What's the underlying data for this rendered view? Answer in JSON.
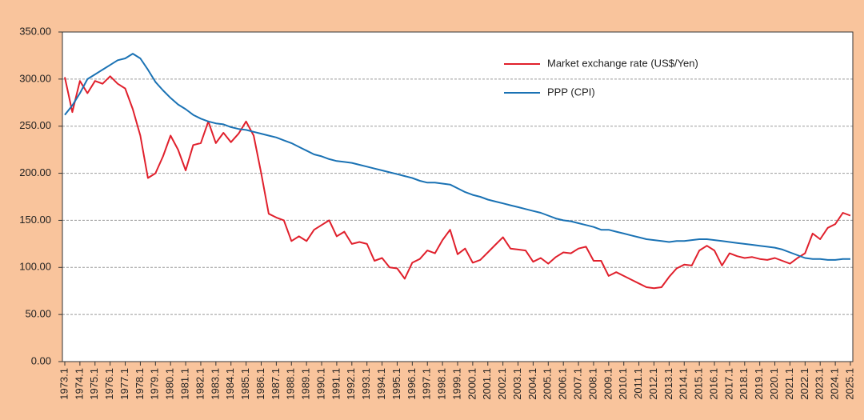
{
  "chart_data": {
    "type": "line",
    "categories": [
      "1973.1",
      null,
      "1974.1",
      null,
      "1975.1",
      null,
      "1976.1",
      null,
      "1977.1",
      null,
      "1978.1",
      null,
      "1979.1",
      null,
      "1980.1",
      null,
      "1981.1",
      null,
      "1982.1",
      null,
      "1983.1",
      null,
      "1984.1",
      null,
      "1985.1",
      null,
      "1986.1",
      null,
      "1987.1",
      null,
      "1988.1",
      null,
      "1989.1",
      null,
      "1990.1",
      null,
      "1991.1",
      null,
      "1992.1",
      null,
      "1993.1",
      null,
      "1994.1",
      null,
      "1995.1",
      null,
      "1996.1",
      null,
      "1997.1",
      null,
      "1998.1",
      null,
      "1999.1",
      null,
      "2000.1",
      null,
      "2001.1",
      null,
      "2002.1",
      null,
      "2003.1",
      null,
      "2004.1",
      null,
      "2005.1",
      null,
      "2006.1",
      null,
      "2007.1",
      null,
      "2008.1",
      null,
      "2009.1",
      null,
      "2010.1",
      null,
      "2011.1",
      null,
      "2012.1",
      null,
      "2013.1",
      null,
      "2014.1",
      null,
      "2015.1",
      null,
      "2016.1",
      null,
      "2017.1",
      null,
      "2018.1",
      null,
      "2019.1",
      null,
      "2020.1",
      null,
      "2021.1",
      null,
      "2022.1",
      null,
      "2023.1",
      null,
      "2024.1",
      null,
      "2025.1"
    ],
    "series": [
      {
        "name": "Market exchange rate (US$/Yen)",
        "color": "#e0202c",
        "values": [
          302,
          265,
          298,
          285,
          298,
          295,
          303,
          295,
          290,
          268,
          240,
          195,
          200,
          218,
          240,
          225,
          203,
          230,
          232,
          255,
          232,
          243,
          233,
          242,
          255,
          240,
          200,
          157,
          153,
          150,
          128,
          133,
          128,
          140,
          145,
          150,
          133,
          138,
          125,
          127,
          125,
          107,
          110,
          100,
          99,
          88,
          105,
          109,
          118,
          115,
          129,
          140,
          114,
          120,
          105,
          108,
          116,
          124,
          132,
          120,
          119,
          118,
          106,
          110,
          104,
          111,
          116,
          115,
          120,
          122,
          107,
          107,
          91,
          95,
          91,
          87,
          83,
          79,
          78,
          79,
          90,
          99,
          103,
          102,
          118,
          123,
          118,
          102,
          115,
          112,
          110,
          111,
          109,
          108,
          110,
          107,
          104,
          110,
          115,
          136,
          130,
          142,
          146,
          158,
          155
        ]
      },
      {
        "name": "PPP (CPI)",
        "color": "#1a72b4",
        "values": [
          262,
          272,
          285,
          300,
          305,
          310,
          315,
          320,
          322,
          327,
          322,
          310,
          297,
          288,
          280,
          273,
          268,
          262,
          258,
          255,
          253,
          252,
          249,
          247,
          246,
          244,
          242,
          240,
          238,
          235,
          232,
          228,
          224,
          220,
          218,
          215,
          213,
          212,
          211,
          209,
          207,
          205,
          203,
          201,
          199,
          197,
          195,
          192,
          190,
          190,
          189,
          188,
          184,
          180,
          177,
          175,
          172,
          170,
          168,
          166,
          164,
          162,
          160,
          158,
          155,
          152,
          150,
          149,
          147,
          145,
          143,
          140,
          140,
          138,
          136,
          134,
          132,
          130,
          129,
          128,
          127,
          128,
          128,
          129,
          130,
          130,
          129,
          128,
          127,
          126,
          125,
          124,
          123,
          122,
          121,
          119,
          116,
          113,
          110,
          109,
          109,
          108,
          108,
          109,
          109
        ]
      }
    ],
    "ylim": [
      0,
      350
    ],
    "yticks": [
      {
        "value": 0,
        "label": "0.00"
      },
      {
        "value": 50,
        "label": "50.00"
      },
      {
        "value": 100,
        "label": "100.00"
      },
      {
        "value": 150,
        "label": "150.00"
      },
      {
        "value": 200,
        "label": "200.00"
      },
      {
        "value": 250,
        "label": "250.00"
      },
      {
        "value": 300,
        "label": "300.00"
      },
      {
        "value": 350,
        "label": "350.00"
      }
    ],
    "grid": true
  }
}
